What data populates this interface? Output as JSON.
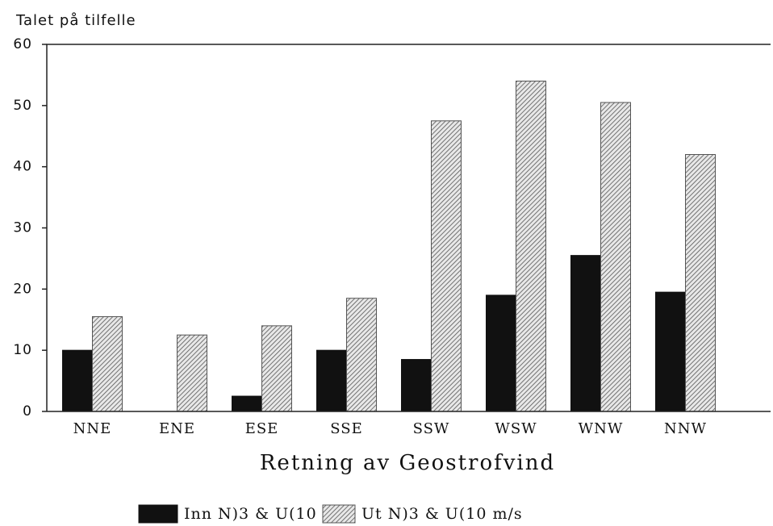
{
  "chart_data": {
    "type": "bar",
    "y_label": "Talet på tilfelle",
    "x_label": "Retning av Geostrofvind",
    "categories": [
      "NNE",
      "ENE",
      "ESE",
      "SSE",
      "SSW",
      "WSW",
      "WNW",
      "NNW"
    ],
    "series": [
      {
        "name": "Inn N)3 & U(10 m/s",
        "color": "#111111",
        "hatch": false,
        "values": [
          10,
          0,
          2.5,
          10,
          8.5,
          19,
          25.5,
          19.5
        ]
      },
      {
        "name": "Ut  N)3 & U(10 m/s",
        "color": "#555555",
        "hatch": true,
        "values": [
          15.5,
          12.5,
          14,
          18.5,
          47.5,
          54,
          50.5,
          42
        ]
      }
    ],
    "ylim": [
      0,
      60
    ],
    "yticks": [
      0,
      10,
      20,
      30,
      40,
      50,
      60
    ],
    "grid": false
  }
}
